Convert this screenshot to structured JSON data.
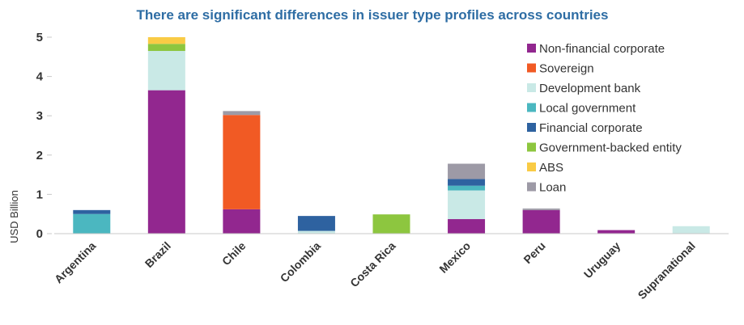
{
  "chart_data": {
    "type": "bar",
    "stacked": true,
    "title": "There are significant differences in issuer type profiles across countries",
    "xlabel": "",
    "ylabel": "USD Billion",
    "ylim": [
      0,
      5
    ],
    "yticks": [
      "0",
      "1",
      "2",
      "3",
      "4",
      "5"
    ],
    "grid": false,
    "legend_position": "top-right",
    "categories": [
      "Argentina",
      "Brazil",
      "Chile",
      "Colombia",
      "Costa Rica",
      "Mexico",
      "Peru",
      "Uruguay",
      "Supranational"
    ],
    "series": [
      {
        "name": "Non-financial corporate",
        "color": "#92278f",
        "values": [
          0,
          3.65,
          0.62,
          0,
          0,
          0.37,
          0.6,
          0.09,
          0
        ]
      },
      {
        "name": "Sovereign",
        "color": "#f15a24",
        "values": [
          0,
          0,
          2.4,
          0,
          0,
          0,
          0,
          0,
          0
        ]
      },
      {
        "name": "Development bank",
        "color": "#c9e9e6",
        "values": [
          0,
          1.0,
          0,
          0.07,
          0,
          0.73,
          0,
          0,
          0.19
        ]
      },
      {
        "name": "Local government",
        "color": "#4bb7c0",
        "values": [
          0.5,
          0,
          0,
          0,
          0,
          0.12,
          0,
          0,
          0
        ]
      },
      {
        "name": "Financial corporate",
        "color": "#2e62a0",
        "values": [
          0.1,
          0,
          0,
          0.38,
          0,
          0.17,
          0,
          0,
          0
        ]
      },
      {
        "name": "Government-backed entity",
        "color": "#8dc63f",
        "values": [
          0,
          0.18,
          0,
          0,
          0.49,
          0,
          0,
          0,
          0
        ]
      },
      {
        "name": "ABS",
        "color": "#f9cb45",
        "values": [
          0,
          0.17,
          0,
          0,
          0,
          0,
          0,
          0,
          0
        ]
      },
      {
        "name": "Loan",
        "color": "#9d9aa6",
        "values": [
          0,
          0,
          0.1,
          0,
          0,
          0.39,
          0.04,
          0,
          0
        ]
      }
    ]
  }
}
